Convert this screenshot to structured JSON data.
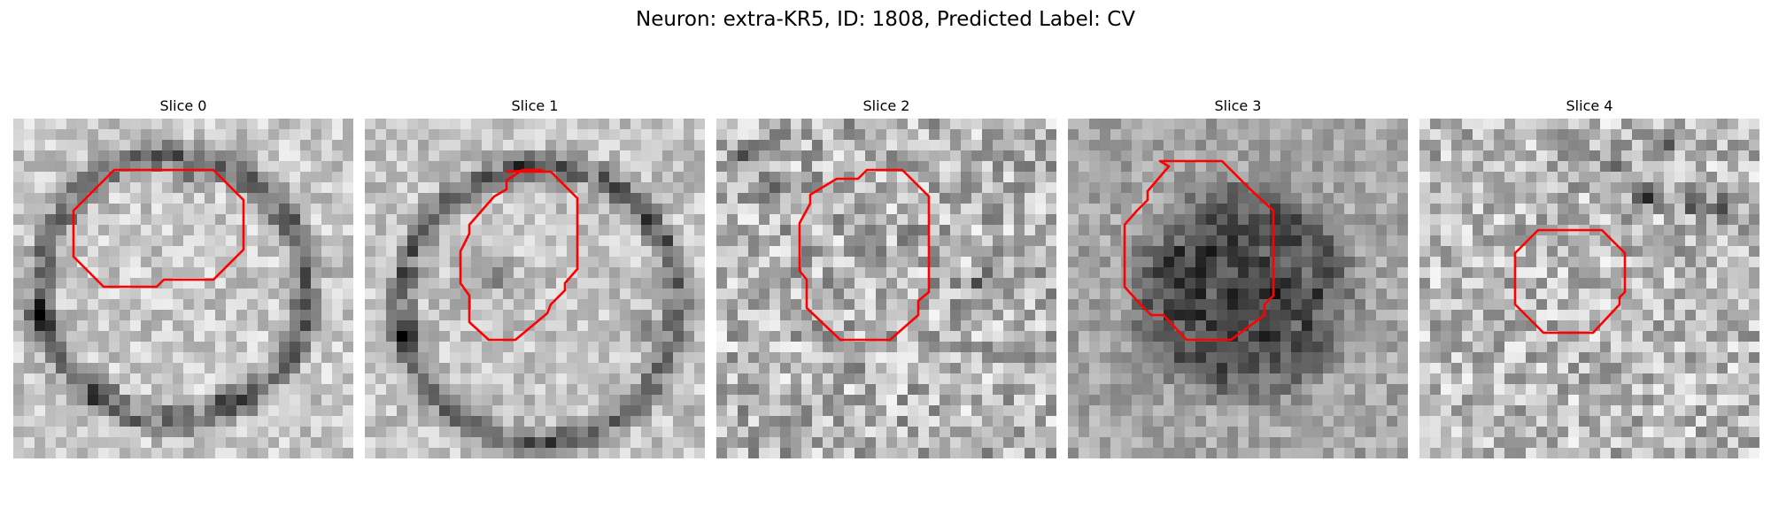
{
  "figure": {
    "title": "Neuron: extra-KR5, ID: 1808, Predicted Label: CV"
  },
  "slices": [
    {
      "label": "Slice 0",
      "contour_color": "#ff0000"
    },
    {
      "label": "Slice 1",
      "contour_color": "#ff0000"
    },
    {
      "label": "Slice 2",
      "contour_color": "#ff0000"
    },
    {
      "label": "Slice 3",
      "contour_color": "#ff0000"
    },
    {
      "label": "Slice 4",
      "contour_color": "#ff0000"
    }
  ]
}
